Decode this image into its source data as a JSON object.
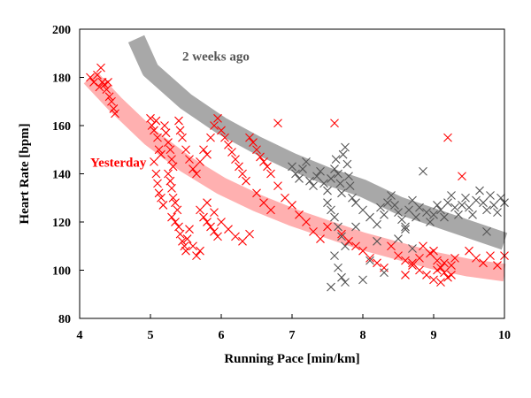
{
  "chart_data": {
    "type": "scatter",
    "xlabel": "Running Pace [min/km]",
    "ylabel": "Heart Rate [bpm]",
    "xlim": [
      4,
      10
    ],
    "ylim": [
      80,
      200
    ],
    "xticks": [
      "4",
      "5",
      "6",
      "7",
      "8",
      "9",
      "10"
    ],
    "yticks": [
      "80",
      "100",
      "120",
      "140",
      "160",
      "180",
      "200"
    ],
    "grid": false,
    "legend": "none",
    "annotations": [
      {
        "text": "2 weeks ago",
        "color": "#555555",
        "x": 5.45,
        "y": 187
      },
      {
        "text": "Yesterday",
        "color": "#ff0000",
        "x": 4.15,
        "y": 143
      }
    ],
    "series": [
      {
        "label_ref": "Yesterday",
        "marker": "x",
        "color": "#ff0000",
        "trend_color": "#ffb0b0",
        "trend": [
          [
            4.15,
            180
          ],
          [
            4.5,
            169
          ],
          [
            5.0,
            155
          ],
          [
            5.5,
            144
          ],
          [
            6.0,
            135
          ],
          [
            6.5,
            128
          ],
          [
            7.0,
            122
          ],
          [
            7.5,
            117
          ],
          [
            8.0,
            112
          ],
          [
            8.5,
            108
          ],
          [
            9.0,
            104
          ],
          [
            9.5,
            101
          ],
          [
            10.0,
            99
          ]
        ],
        "points": [
          [
            4.15,
            180
          ],
          [
            4.2,
            178
          ],
          [
            4.25,
            181
          ],
          [
            4.28,
            176
          ],
          [
            4.3,
            184
          ],
          [
            4.32,
            178
          ],
          [
            4.35,
            177
          ],
          [
            4.38,
            175
          ],
          [
            4.4,
            178
          ],
          [
            4.42,
            172
          ],
          [
            4.45,
            170
          ],
          [
            4.48,
            167
          ],
          [
            4.5,
            165
          ],
          [
            5.0,
            163
          ],
          [
            5.02,
            160
          ],
          [
            5.05,
            158
          ],
          [
            5.08,
            162
          ],
          [
            5.1,
            155
          ],
          [
            5.12,
            150
          ],
          [
            5.15,
            148
          ],
          [
            5.05,
            145
          ],
          [
            5.08,
            140
          ],
          [
            5.1,
            136
          ],
          [
            5.12,
            132
          ],
          [
            5.15,
            130
          ],
          [
            5.18,
            127
          ],
          [
            5.2,
            160
          ],
          [
            5.22,
            157
          ],
          [
            5.25,
            153
          ],
          [
            5.28,
            150
          ],
          [
            5.3,
            146
          ],
          [
            5.32,
            143
          ],
          [
            5.25,
            140
          ],
          [
            5.28,
            137
          ],
          [
            5.3,
            134
          ],
          [
            5.32,
            130
          ],
          [
            5.35,
            128
          ],
          [
            5.38,
            125
          ],
          [
            5.3,
            122
          ],
          [
            5.35,
            120
          ],
          [
            5.4,
            118
          ],
          [
            5.42,
            115
          ],
          [
            5.45,
            112
          ],
          [
            5.48,
            110
          ],
          [
            5.5,
            108
          ],
          [
            5.52,
            113
          ],
          [
            5.55,
            117
          ],
          [
            5.4,
            162
          ],
          [
            5.42,
            158
          ],
          [
            5.45,
            155
          ],
          [
            5.5,
            150
          ],
          [
            5.55,
            146
          ],
          [
            5.6,
            142
          ],
          [
            5.65,
            140
          ],
          [
            5.7,
            145
          ],
          [
            5.75,
            150
          ],
          [
            5.8,
            148
          ],
          [
            5.85,
            155
          ],
          [
            5.9,
            160
          ],
          [
            5.95,
            163
          ],
          [
            6.0,
            158
          ],
          [
            6.05,
            155
          ],
          [
            6.1,
            152
          ],
          [
            6.15,
            149
          ],
          [
            6.2,
            146
          ],
          [
            6.25,
            143
          ],
          [
            6.3,
            140
          ],
          [
            6.35,
            137
          ],
          [
            6.4,
            155
          ],
          [
            6.45,
            153
          ],
          [
            6.5,
            150
          ],
          [
            6.55,
            147
          ],
          [
            6.6,
            145
          ],
          [
            6.65,
            143
          ],
          [
            6.7,
            140
          ],
          [
            5.7,
            125
          ],
          [
            5.75,
            122
          ],
          [
            5.8,
            120
          ],
          [
            5.85,
            118
          ],
          [
            5.9,
            116
          ],
          [
            5.95,
            114
          ],
          [
            5.6,
            110
          ],
          [
            5.65,
            106
          ],
          [
            5.7,
            108
          ],
          [
            5.8,
            128
          ],
          [
            5.9,
            124
          ],
          [
            6.0,
            120
          ],
          [
            6.1,
            117
          ],
          [
            6.2,
            114
          ],
          [
            6.3,
            112
          ],
          [
            6.4,
            115
          ],
          [
            6.5,
            132
          ],
          [
            6.6,
            128
          ],
          [
            6.7,
            125
          ],
          [
            6.8,
            161
          ],
          [
            6.8,
            135
          ],
          [
            6.9,
            130
          ],
          [
            7.0,
            127
          ],
          [
            7.1,
            123
          ],
          [
            7.2,
            120
          ],
          [
            7.3,
            116
          ],
          [
            7.4,
            113
          ],
          [
            7.5,
            118
          ],
          [
            7.6,
            161
          ],
          [
            7.7,
            115
          ],
          [
            7.8,
            112
          ],
          [
            7.9,
            110
          ],
          [
            8.0,
            108
          ],
          [
            8.1,
            105
          ],
          [
            8.2,
            103
          ],
          [
            8.3,
            101
          ],
          [
            8.4,
            110
          ],
          [
            8.5,
            106
          ],
          [
            8.6,
            104
          ],
          [
            8.7,
            102
          ],
          [
            8.8,
            100
          ],
          [
            8.9,
            98
          ],
          [
            9.0,
            108
          ],
          [
            9.05,
            104
          ],
          [
            9.1,
            101
          ],
          [
            9.15,
            99
          ],
          [
            9.2,
            97
          ],
          [
            9.25,
            102
          ],
          [
            9.3,
            105
          ],
          [
            9.0,
            96
          ],
          [
            9.1,
            95
          ],
          [
            9.2,
            155
          ],
          [
            9.4,
            139
          ],
          [
            9.5,
            108
          ],
          [
            9.6,
            105
          ],
          [
            9.7,
            103
          ],
          [
            9.8,
            106
          ],
          [
            9.9,
            102
          ],
          [
            10.0,
            106
          ],
          [
            8.85,
            110
          ],
          [
            8.95,
            107
          ],
          [
            9.05,
            100
          ],
          [
            9.15,
            103
          ],
          [
            9.25,
            98
          ],
          [
            8.6,
            98
          ],
          [
            8.7,
            103
          ],
          [
            8.8,
            105
          ]
        ]
      },
      {
        "label_ref": "2 weeks ago",
        "marker": "x",
        "color": "#555555",
        "trend_color": "#a8a8a8",
        "trend": [
          [
            4.8,
            196
          ],
          [
            5.0,
            183
          ],
          [
            5.5,
            170
          ],
          [
            6.0,
            160
          ],
          [
            6.5,
            152
          ],
          [
            7.0,
            145
          ],
          [
            7.5,
            139
          ],
          [
            8.0,
            134
          ],
          [
            8.5,
            127
          ],
          [
            9.0,
            122
          ],
          [
            9.5,
            117
          ],
          [
            10.0,
            112
          ]
        ],
        "points": [
          [
            7.0,
            143
          ],
          [
            7.05,
            140
          ],
          [
            7.1,
            138
          ],
          [
            7.15,
            142
          ],
          [
            7.2,
            145
          ],
          [
            7.25,
            137
          ],
          [
            7.3,
            135
          ],
          [
            7.35,
            139
          ],
          [
            7.4,
            141
          ],
          [
            7.45,
            136
          ],
          [
            7.5,
            133
          ],
          [
            7.55,
            138
          ],
          [
            7.6,
            142
          ],
          [
            7.62,
            146
          ],
          [
            7.65,
            140
          ],
          [
            7.68,
            136
          ],
          [
            7.7,
            132
          ],
          [
            7.72,
            148
          ],
          [
            7.75,
            151
          ],
          [
            7.78,
            144
          ],
          [
            7.8,
            139
          ],
          [
            7.82,
            135
          ],
          [
            7.85,
            130
          ],
          [
            7.5,
            128
          ],
          [
            7.55,
            125
          ],
          [
            7.6,
            122
          ],
          [
            7.65,
            118
          ],
          [
            7.7,
            114
          ],
          [
            7.75,
            110
          ],
          [
            7.6,
            106
          ],
          [
            7.65,
            101
          ],
          [
            7.7,
            97
          ],
          [
            7.55,
            93
          ],
          [
            7.75,
            95
          ],
          [
            7.9,
            128
          ],
          [
            8.0,
            125
          ],
          [
            8.1,
            122
          ],
          [
            8.2,
            119
          ],
          [
            8.25,
            126
          ],
          [
            8.3,
            123
          ],
          [
            8.35,
            128
          ],
          [
            8.4,
            131
          ],
          [
            8.45,
            127
          ],
          [
            8.5,
            124
          ],
          [
            8.55,
            121
          ],
          [
            8.6,
            118
          ],
          [
            8.65,
            125
          ],
          [
            8.7,
            129
          ],
          [
            8.75,
            122
          ],
          [
            8.8,
            126
          ],
          [
            8.85,
            141
          ],
          [
            8.9,
            124
          ],
          [
            8.95,
            120
          ],
          [
            9.0,
            123
          ],
          [
            9.05,
            127
          ],
          [
            9.1,
            125
          ],
          [
            9.15,
            122
          ],
          [
            9.2,
            128
          ],
          [
            9.25,
            131
          ],
          [
            9.3,
            126
          ],
          [
            9.35,
            123
          ],
          [
            9.4,
            127
          ],
          [
            9.45,
            130
          ],
          [
            9.5,
            126
          ],
          [
            9.55,
            123
          ],
          [
            9.6,
            129
          ],
          [
            9.65,
            133
          ],
          [
            9.7,
            128
          ],
          [
            9.75,
            125
          ],
          [
            9.8,
            131
          ],
          [
            9.85,
            127
          ],
          [
            9.9,
            124
          ],
          [
            9.95,
            130
          ],
          [
            10.0,
            128
          ],
          [
            9.75,
            116
          ],
          [
            8.0,
            96
          ],
          [
            8.3,
            99
          ],
          [
            8.1,
            104
          ],
          [
            8.5,
            113
          ],
          [
            8.6,
            117
          ],
          [
            8.7,
            109
          ],
          [
            8.2,
            112
          ],
          [
            7.9,
            118
          ]
        ]
      }
    ]
  }
}
